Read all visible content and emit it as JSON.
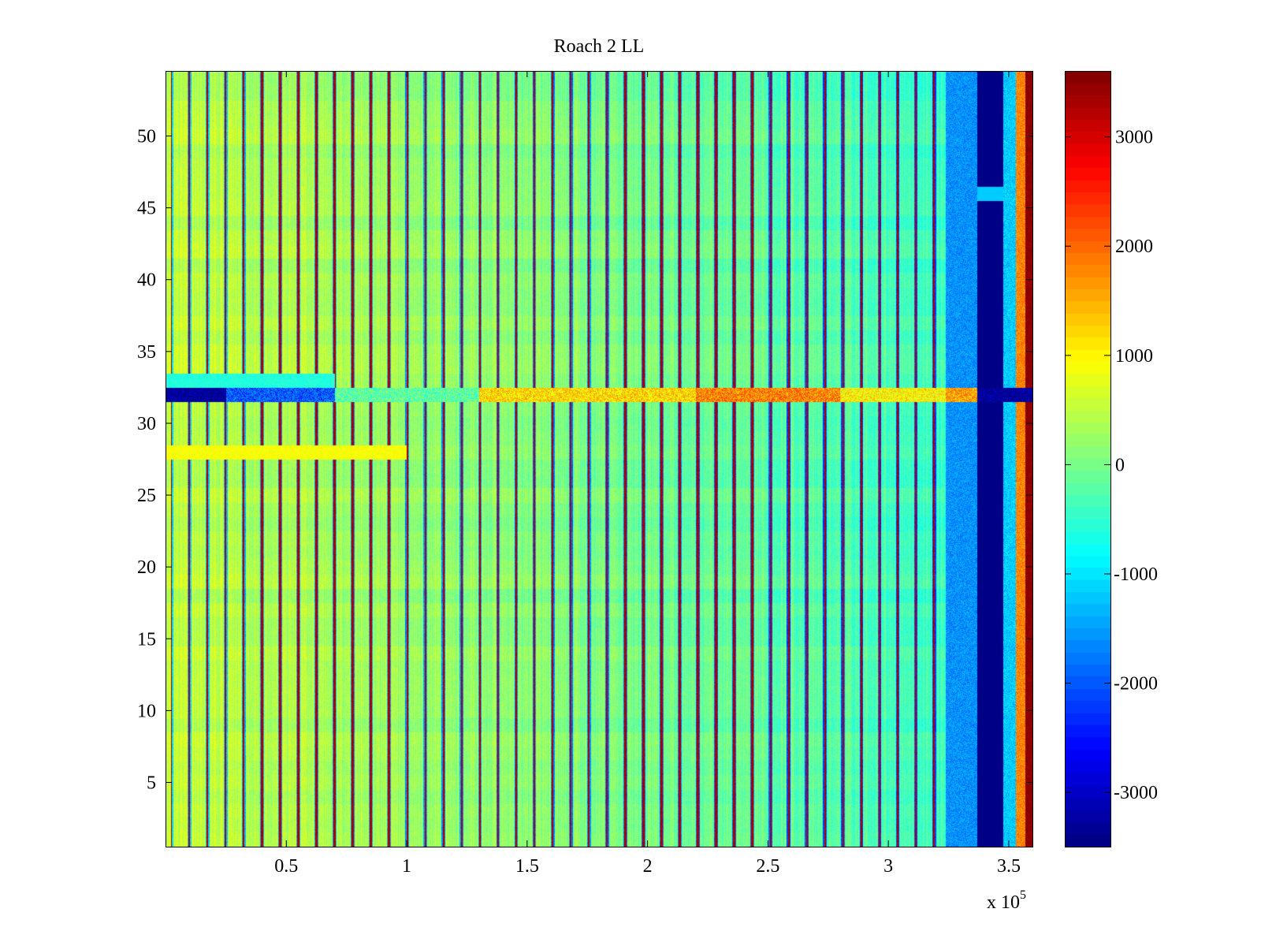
{
  "chart_data": {
    "type": "heatmap",
    "title": "Roach 2 LL",
    "xlabel": "",
    "ylabel": "",
    "x_scale_label": "x 10",
    "x_scale_exponent": "5",
    "xlim": [
      0.0,
      3.6
    ],
    "ylim": [
      0.5,
      54.5
    ],
    "x_ticks": [
      0.5,
      1.0,
      1.5,
      2.0,
      2.5,
      3.0,
      3.5
    ],
    "x_tick_labels": [
      "0.5",
      "1",
      "1.5",
      "2",
      "2.5",
      "3",
      "3.5"
    ],
    "y_ticks": [
      5,
      10,
      15,
      20,
      25,
      30,
      35,
      40,
      45,
      50
    ],
    "y_tick_labels": [
      "5",
      "10",
      "15",
      "20",
      "25",
      "30",
      "35",
      "40",
      "45",
      "50"
    ],
    "rows": 54,
    "colormap": "jet",
    "clim": [
      -3500,
      3600
    ],
    "colorbar_ticks": [
      3000,
      2000,
      1000,
      0,
      -1000,
      -2000,
      -3000
    ],
    "colorbar_tick_labels": [
      "3000",
      "2000",
      "1000",
      "0",
      "-1000",
      "-2000",
      "-3000"
    ],
    "baseline_value": 100,
    "early_region_value": 500,
    "late_region_value": -700,
    "noise_amplitude": 450,
    "features": [
      {
        "kind": "vertical_spikes",
        "x_start": 0.02,
        "x_end": 3.22,
        "spacing": 0.0755,
        "value": 3300,
        "note": "periodic narrow red columns"
      },
      {
        "kind": "vertical_band",
        "x_start": 3.24,
        "x_end": 3.37,
        "value": -1600
      },
      {
        "kind": "vertical_band",
        "x_start": 3.37,
        "x_end": 3.48,
        "value": -3450
      },
      {
        "kind": "vertical_band",
        "x_start": 3.48,
        "x_end": 3.53,
        "value": -1200
      },
      {
        "kind": "vertical_band",
        "x_start": 3.53,
        "x_end": 3.57,
        "value": 1800
      },
      {
        "kind": "vertical_band",
        "x_start": 3.57,
        "x_end": 3.6,
        "value": 3600
      },
      {
        "kind": "anomalous_row",
        "y": 32,
        "segments": [
          {
            "x_start": 0.0,
            "x_end": 0.25,
            "value": -3400
          },
          {
            "x_start": 0.25,
            "x_end": 0.7,
            "value": -2000
          },
          {
            "x_start": 0.7,
            "x_end": 1.3,
            "value": -200
          },
          {
            "x_start": 1.3,
            "x_end": 2.2,
            "value": 1200
          },
          {
            "x_start": 2.2,
            "x_end": 2.8,
            "value": 1800
          },
          {
            "x_start": 2.8,
            "x_end": 3.24,
            "value": 1000
          },
          {
            "x_start": 3.24,
            "x_end": 3.37,
            "value": 1600
          },
          {
            "x_start": 3.37,
            "x_end": 3.6,
            "value": -3400
          }
        ]
      },
      {
        "kind": "light_row",
        "y": 33,
        "x_end": 0.7,
        "value": -600
      },
      {
        "kind": "warm_row",
        "y": 28,
        "x_end": 1.0,
        "value": 900
      }
    ]
  }
}
